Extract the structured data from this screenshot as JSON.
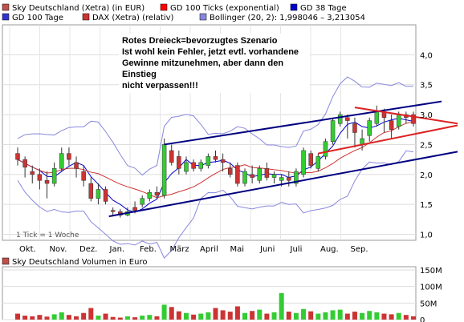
{
  "legend": [
    {
      "label": "Sky Deutschland (Xetra) (in EUR)",
      "color": "#c0504d"
    },
    {
      "label": "GD 100 Ticks (exponential)",
      "color": "#ff0000"
    },
    {
      "label": "GD 38 Tage",
      "color": "#0000cc"
    },
    {
      "label": "GD 100 Tage",
      "color": "#3333cc"
    },
    {
      "label": "DAX (Xetra) (relativ)",
      "color": "#cc3333"
    },
    {
      "label": "Bollinger (20, 2): 1,998046 – 3,213054",
      "color": "#8888dd"
    }
  ],
  "annotation": [
    "Rotes Dreieck=bevorzugtes Szenario",
    "Ist wohl kein Fehler, jetzt evtl. vorhandene",
    "Gewinne mitzunehmen, aber dann den Einstieg",
    "nicht verpassen!!!"
  ],
  "footnote": "1 Tick = 1 Woche",
  "volume_title": "Sky Deutschland Volumen in Euro",
  "volume_legend_color": "#c0504d",
  "colors": {
    "up": "#33cc33",
    "down": "#cc3333",
    "channel": "#000080",
    "triangle": "#dd2222"
  },
  "chart_data": {
    "type": "candlestick",
    "months": [
      "Okt.",
      "Nov.",
      "Dez.",
      "Jan.",
      "Feb.",
      "März",
      "April",
      "Mai",
      "Juni",
      "Juli",
      "Aug.",
      "Sep."
    ],
    "price_axis": {
      "ticks": [
        "1,0",
        "1,5",
        "2,0",
        "2,5",
        "3,0",
        "3,5",
        "4,0"
      ],
      "ylim": [
        0.9,
        4.5
      ]
    },
    "volume_axis": {
      "ticks": [
        "0",
        "50M",
        "100M",
        "150M"
      ],
      "ylim": [
        0,
        150
      ]
    },
    "candles": [
      {
        "o": 2.35,
        "c": 2.25,
        "h": 2.45,
        "l": 2.15
      },
      {
        "o": 2.25,
        "c": 2.12,
        "h": 2.3,
        "l": 1.95
      },
      {
        "o": 2.05,
        "c": 2.0,
        "h": 2.15,
        "l": 1.85
      },
      {
        "o": 2.0,
        "c": 1.9,
        "h": 2.1,
        "l": 1.75
      },
      {
        "o": 1.9,
        "c": 1.85,
        "h": 2.05,
        "l": 1.6
      },
      {
        "o": 1.85,
        "c": 2.1,
        "h": 2.2,
        "l": 1.8
      },
      {
        "o": 2.1,
        "c": 2.35,
        "h": 2.45,
        "l": 2.05
      },
      {
        "o": 2.35,
        "c": 2.25,
        "h": 2.45,
        "l": 2.15
      },
      {
        "o": 2.2,
        "c": 2.1,
        "h": 2.3,
        "l": 1.95
      },
      {
        "o": 2.05,
        "c": 1.9,
        "h": 2.15,
        "l": 1.8
      },
      {
        "o": 1.85,
        "c": 1.6,
        "h": 1.95,
        "l": 1.55
      },
      {
        "o": 1.6,
        "c": 1.75,
        "h": 1.85,
        "l": 1.5
      },
      {
        "o": 1.75,
        "c": 1.55,
        "h": 1.8,
        "l": 1.5
      },
      {
        "o": 1.4,
        "c": 1.38,
        "h": 1.45,
        "l": 1.3
      },
      {
        "o": 1.38,
        "c": 1.32,
        "h": 1.42,
        "l": 1.28
      },
      {
        "o": 1.32,
        "c": 1.38,
        "h": 1.45,
        "l": 1.3
      },
      {
        "o": 1.45,
        "c": 1.4,
        "h": 1.55,
        "l": 1.35
      },
      {
        "o": 1.5,
        "c": 1.6,
        "h": 1.65,
        "l": 1.45
      },
      {
        "o": 1.6,
        "c": 1.7,
        "h": 1.75,
        "l": 1.55
      },
      {
        "o": 1.7,
        "c": 1.65,
        "h": 1.8,
        "l": 1.6
      },
      {
        "o": 1.65,
        "c": 2.5,
        "h": 2.6,
        "l": 1.6
      },
      {
        "o": 2.4,
        "c": 2.2,
        "h": 2.5,
        "l": 2.15
      },
      {
        "o": 2.3,
        "c": 2.1,
        "h": 2.4,
        "l": 2.0
      },
      {
        "o": 2.05,
        "c": 2.2,
        "h": 2.3,
        "l": 2.0
      },
      {
        "o": 2.2,
        "c": 2.1,
        "h": 2.25,
        "l": 2.05
      },
      {
        "o": 2.1,
        "c": 2.2,
        "h": 2.25,
        "l": 2.05
      },
      {
        "o": 2.15,
        "c": 2.3,
        "h": 2.35,
        "l": 2.1
      },
      {
        "o": 2.3,
        "c": 2.25,
        "h": 2.4,
        "l": 2.2
      },
      {
        "o": 2.25,
        "c": 2.2,
        "h": 2.35,
        "l": 2.05
      },
      {
        "o": 2.1,
        "c": 2.0,
        "h": 2.2,
        "l": 1.95
      },
      {
        "o": 2.15,
        "c": 1.85,
        "h": 2.2,
        "l": 1.8
      },
      {
        "o": 1.85,
        "c": 2.05,
        "h": 2.1,
        "l": 1.8
      },
      {
        "o": 2.0,
        "c": 1.95,
        "h": 2.15,
        "l": 1.85
      },
      {
        "o": 1.9,
        "c": 2.1,
        "h": 2.15,
        "l": 1.85
      },
      {
        "o": 2.1,
        "c": 1.95,
        "h": 2.2,
        "l": 1.9
      },
      {
        "o": 1.95,
        "c": 2.0,
        "h": 2.05,
        "l": 1.85
      },
      {
        "o": 1.9,
        "c": 1.95,
        "h": 2.0,
        "l": 1.8
      },
      {
        "o": 1.95,
        "c": 1.9,
        "h": 2.05,
        "l": 1.8
      },
      {
        "o": 1.85,
        "c": 2.05,
        "h": 2.1,
        "l": 1.8
      },
      {
        "o": 2.0,
        "c": 2.4,
        "h": 2.45,
        "l": 1.95
      },
      {
        "o": 2.35,
        "c": 2.15,
        "h": 2.4,
        "l": 2.1
      },
      {
        "o": 2.1,
        "c": 2.3,
        "h": 2.35,
        "l": 2.05
      },
      {
        "o": 2.3,
        "c": 2.55,
        "h": 2.6,
        "l": 2.25
      },
      {
        "o": 2.55,
        "c": 2.9,
        "h": 2.95,
        "l": 2.5
      },
      {
        "o": 2.85,
        "c": 3.0,
        "h": 3.05,
        "l": 2.8
      },
      {
        "o": 2.95,
        "c": 2.9,
        "h": 3.0,
        "l": 2.6
      },
      {
        "o": 2.85,
        "c": 2.7,
        "h": 2.95,
        "l": 2.45
      },
      {
        "o": 2.5,
        "c": 2.6,
        "h": 2.75,
        "l": 2.4
      },
      {
        "o": 2.65,
        "c": 2.9,
        "h": 2.95,
        "l": 2.55
      },
      {
        "o": 2.85,
        "c": 3.05,
        "h": 3.15,
        "l": 2.8
      },
      {
        "o": 3.05,
        "c": 2.95,
        "h": 3.1,
        "l": 2.7
      },
      {
        "o": 2.9,
        "c": 2.75,
        "h": 3.0,
        "l": 2.6
      },
      {
        "o": 2.8,
        "c": 3.0,
        "h": 3.05,
        "l": 2.75
      },
      {
        "o": 3.0,
        "c": 2.95,
        "h": 3.05,
        "l": 2.85
      },
      {
        "o": 3.0,
        "c": 2.85,
        "h": 3.05,
        "l": 2.8
      }
    ],
    "volumes": [
      18,
      12,
      10,
      14,
      9,
      16,
      22,
      14,
      10,
      20,
      35,
      12,
      18,
      8,
      6,
      10,
      7,
      12,
      14,
      10,
      45,
      38,
      25,
      20,
      15,
      18,
      22,
      35,
      28,
      24,
      40,
      20,
      26,
      30,
      18,
      22,
      80,
      24,
      20,
      32,
      25,
      18,
      22,
      28,
      30,
      18,
      24,
      20,
      26,
      22,
      18,
      16,
      20,
      14,
      10
    ]
  }
}
